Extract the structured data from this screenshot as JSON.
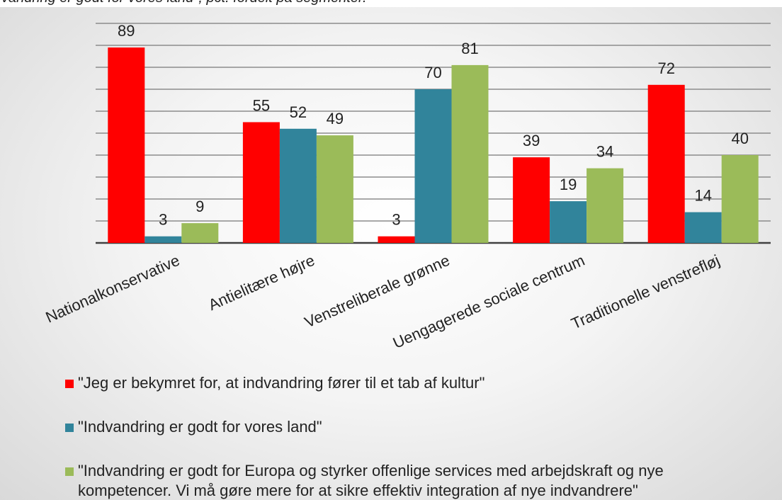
{
  "chart_data": {
    "type": "bar",
    "subtitle": "vandring er godt for vores land\", pct. fordelt på segmenter.",
    "categories": [
      "Nationalkonservative",
      "Antielitære højre",
      "Venstreliberale grønne",
      "Uengagerede sociale centrum",
      "Traditionelle venstrefløj"
    ],
    "series": [
      {
        "name": "\"Jeg er bekymret for, at indvandring fører til et tab af kultur\"",
        "color": "#ff0000",
        "values": [
          89,
          55,
          3,
          39,
          72
        ]
      },
      {
        "name": "\"Indvandring er godt for vores land\"",
        "color": "#31849b",
        "values": [
          3,
          52,
          70,
          19,
          14
        ]
      },
      {
        "name": "\"Indvandring er godt for Europa og styrker offenlige services med arbejdskraft og nye kompetencer. Vi må gøre mere for at sikre effektiv integration af nye indvandrere\"",
        "color": "#9bbb59",
        "values": [
          9,
          49,
          81,
          34,
          40
        ]
      }
    ],
    "ylim": [
      0,
      100
    ],
    "yticks": [
      10,
      20,
      30,
      40,
      50,
      60,
      70,
      80,
      90,
      100
    ],
    "grid": true,
    "legend": "bottom"
  }
}
